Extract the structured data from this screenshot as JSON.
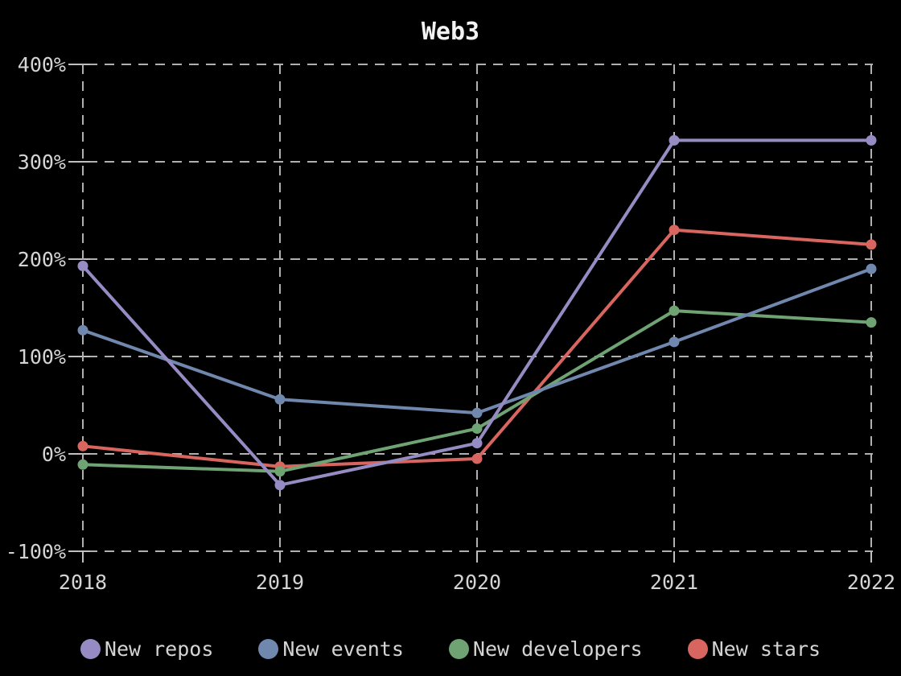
{
  "colors": {
    "background": "#000000",
    "text": "#d4d4d4",
    "title": "#f2f2f2",
    "grid": "#b0b0b0",
    "tick": "#c0c0c0"
  },
  "chart_data": {
    "type": "line",
    "title": "Web3",
    "xlabel": "",
    "ylabel": "",
    "x": [
      "2018",
      "2019",
      "2020",
      "2021",
      "2022"
    ],
    "y_ticks": [
      400,
      300,
      200,
      100,
      0,
      -100
    ],
    "y_tick_labels": [
      "400%",
      "300%",
      "200%",
      "100%",
      "0%",
      "-100%"
    ],
    "ylim": [
      -100,
      400
    ],
    "grid": true,
    "grid_style": "dashed",
    "legend_position": "bottom",
    "series": [
      {
        "name": "New repos",
        "color": "#968cc3",
        "values": [
          193,
          -32,
          11,
          322,
          322
        ]
      },
      {
        "name": "New events",
        "color": "#7088ad",
        "values": [
          127,
          56,
          42,
          115,
          190
        ]
      },
      {
        "name": "New developers",
        "color": "#6fa373",
        "values": [
          -11,
          -18,
          26,
          147,
          135
        ]
      },
      {
        "name": "New stars",
        "color": "#d8655f",
        "values": [
          8,
          -13,
          -5,
          230,
          215
        ]
      }
    ]
  }
}
